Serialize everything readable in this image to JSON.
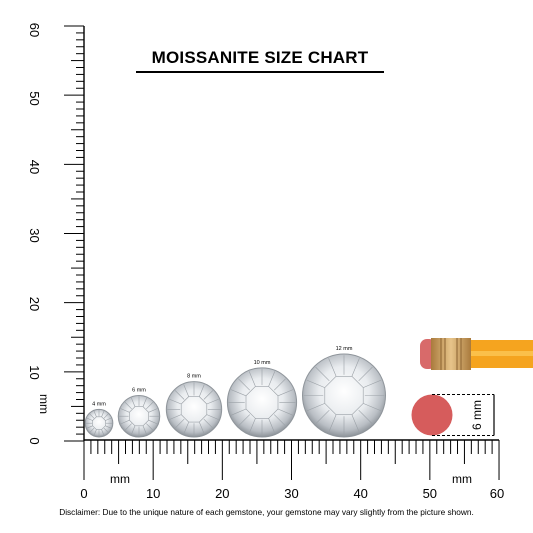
{
  "title": "MOISSANITE SIZE CHART",
  "disclaimer": "Disclaimer: Due to the unique nature of each gemstone, your gemstone may vary slightly from the picture shown.",
  "vertical_ruler": {
    "unit_label": "mm",
    "labels": [
      "0",
      "10",
      "20",
      "30",
      "40",
      "50",
      "60"
    ]
  },
  "horizontal_ruler": {
    "unit_labels": [
      "mm",
      "mm"
    ],
    "labels": [
      "0",
      "10",
      "20",
      "30",
      "40",
      "50",
      "60"
    ]
  },
  "gemstones": [
    {
      "size_mm": 4,
      "label": "4 mm"
    },
    {
      "size_mm": 6,
      "label": "6 mm"
    },
    {
      "size_mm": 8,
      "label": "8 mm"
    },
    {
      "size_mm": 10,
      "label": "10 mm"
    },
    {
      "size_mm": 12,
      "label": "12 mm"
    }
  ],
  "eraser": {
    "size_mm": 6,
    "label": "6 mm"
  },
  "colors": {
    "pencil_body": "#f5a41f",
    "pencil_stripe": "#fbc04a",
    "ferrule": "#c89a56",
    "eraser": "#d86a6a",
    "eraser_dot": "#d65c5c",
    "ink": "#000000"
  }
}
